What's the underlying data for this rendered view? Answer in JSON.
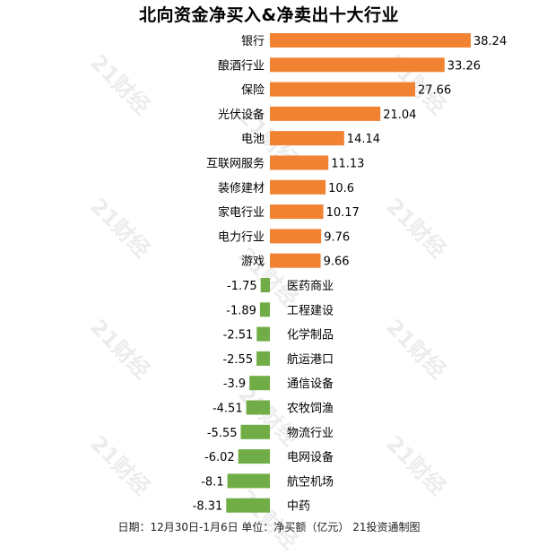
{
  "watermark": "21财经",
  "footer": "日期：12月30日-1月6日 单位：净买额（亿元） 21投资通制图",
  "colors": {
    "positive": "#f08232",
    "negative": "#70ad47",
    "text": "#000000"
  },
  "chart_data": {
    "type": "bar",
    "orientation": "horizontal",
    "title": "北向资金净买入&净卖出十大行业",
    "categories": [
      "银行",
      "酿酒行业",
      "保险",
      "光伏设备",
      "电池",
      "互联网服务",
      "装修建材",
      "家电行业",
      "电力行业",
      "游戏",
      "医药商业",
      "工程建设",
      "化学制品",
      "航运港口",
      "通信设备",
      "农牧饲渔",
      "物流行业",
      "电网设备",
      "航空机场",
      "中药"
    ],
    "values": [
      38.24,
      33.26,
      27.66,
      21.04,
      14.14,
      11.13,
      10.6,
      10.17,
      9.76,
      9.66,
      -1.75,
      -1.89,
      -2.51,
      -2.55,
      -3.9,
      -4.51,
      -5.55,
      -6.02,
      -8.1,
      -8.31
    ],
    "value_labels": [
      "38.24",
      "33.26",
      "27.66",
      "21.04",
      "14.14",
      "11.13",
      "10.6",
      "10.17",
      "9.76",
      "9.66",
      "-1.75",
      "-1.89",
      "-2.51",
      "-2.55",
      "-3.9",
      "-4.51",
      "-5.55",
      "-6.02",
      "-8.1",
      "-8.31"
    ],
    "grid": false,
    "legend": "none"
  }
}
